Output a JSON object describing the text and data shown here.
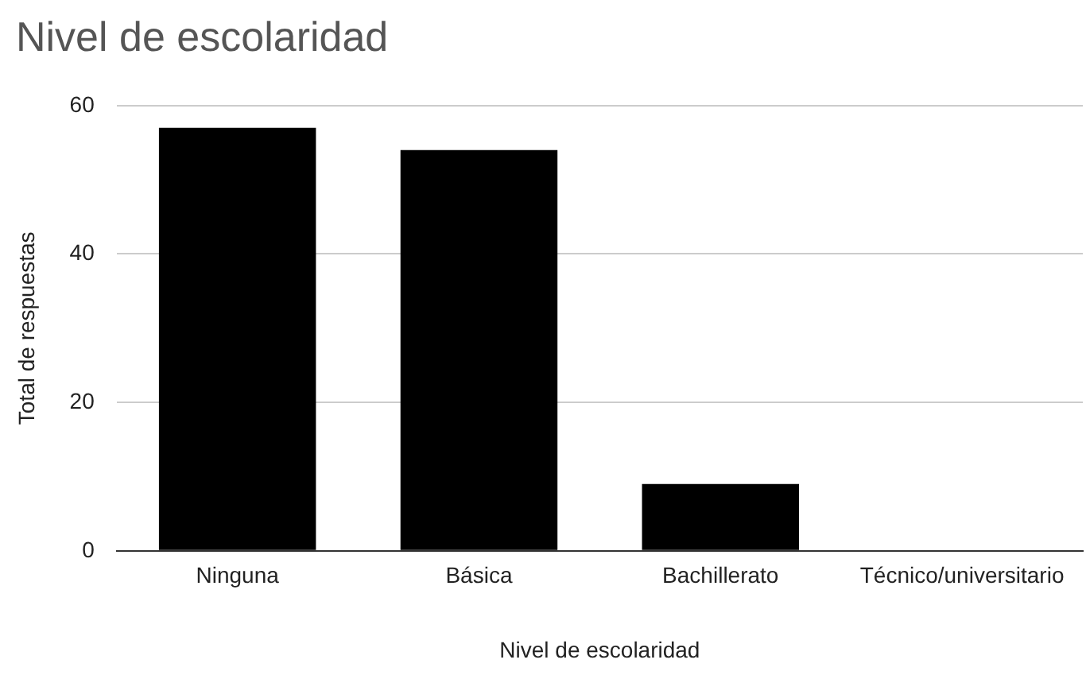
{
  "chart_data": {
    "type": "bar",
    "title": "Nivel de escolaridad",
    "xlabel": "Nivel de escolaridad",
    "ylabel": "Total de respuestas",
    "categories": [
      "Ninguna",
      "Básica",
      "Bachillerato",
      "Técnico/universitario"
    ],
    "values": [
      57,
      54,
      9,
      0
    ],
    "color": "#000000",
    "ylim": [
      0,
      60
    ],
    "yticks": [
      0,
      20,
      40,
      60
    ],
    "grid": "y"
  }
}
